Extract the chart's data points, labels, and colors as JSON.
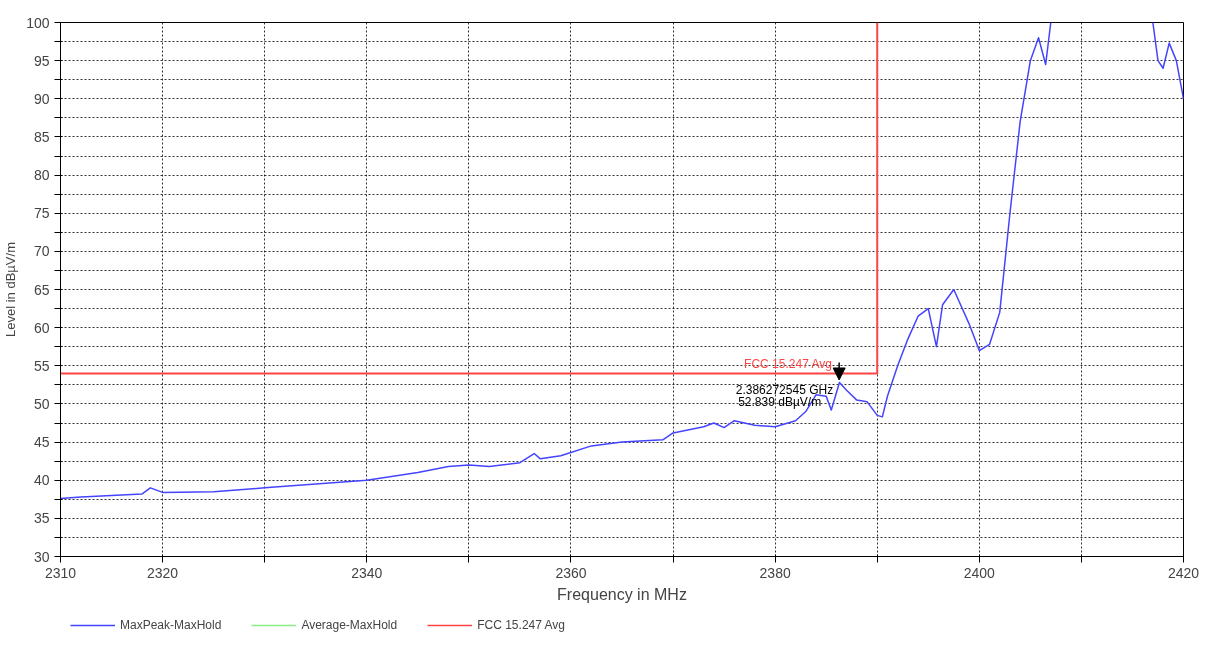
{
  "chart_data": {
    "type": "line",
    "xlabel": "Frequency in MHz",
    "ylabel": "Level in dBµV/m",
    "xlim": [
      2310,
      2420
    ],
    "ylim": [
      30,
      100
    ],
    "xticks": [
      2310,
      2320,
      {
        "value": 2330,
        "label": null
      },
      2340,
      {
        "value": 2350,
        "label": null
      },
      2360,
      {
        "value": 2370,
        "label": null
      },
      2380,
      {
        "value": 2390,
        "label": null
      },
      2400,
      {
        "value": 2410,
        "label": null
      },
      2420
    ],
    "yticks": [
      30,
      {
        "value": 32.5,
        "label": null
      },
      35,
      {
        "value": 37.5,
        "label": null
      },
      40,
      {
        "value": 42.5,
        "label": null
      },
      45,
      {
        "value": 47.5,
        "label": null
      },
      50,
      {
        "value": 52.5,
        "label": null
      },
      55,
      {
        "value": 57.5,
        "label": null
      },
      60,
      {
        "value": 62.5,
        "label": null
      },
      65,
      {
        "value": 67.5,
        "label": null
      },
      70,
      {
        "value": 72.5,
        "label": null
      },
      75,
      {
        "value": 77.5,
        "label": null
      },
      80,
      {
        "value": 82.5,
        "label": null
      },
      85,
      {
        "value": 87.5,
        "label": null
      },
      90,
      {
        "value": 92.5,
        "label": null
      },
      95,
      {
        "value": 97.5,
        "label": null
      },
      100
    ],
    "grid": true,
    "legend": "bottom left",
    "marker": "none",
    "line_style": "solid",
    "series": [
      {
        "name": "MaxPeak-MaxHold",
        "color": "#4444ff",
        "x": [
          2310,
          2312,
          2315,
          2318,
          2318.8,
          2320,
          2325,
          2330,
          2335,
          2340,
          2345,
          2348,
          2350,
          2352,
          2355,
          2356.4,
          2357,
          2359,
          2362,
          2365,
          2369,
          2370,
          2373,
          2374,
          2375,
          2376,
          2378,
          2380,
          2382,
          2383,
          2384,
          2385,
          2385.5,
          2386.3,
          2387,
          2388,
          2389,
          2390,
          2390.5,
          2391,
          2392,
          2393,
          2394,
          2395,
          2395.8,
          2396.4,
          2397.5,
          2398,
          2399,
          2400,
          2401,
          2402,
          2403,
          2404,
          2405,
          2405.8,
          2406.5,
          2407,
          2412,
          2417,
          2417.5,
          2418,
          2418.6,
          2419.3,
          2420
        ],
        "values": [
          37.6,
          37.8,
          38.0,
          38.2,
          39.0,
          38.4,
          38.5,
          39.0,
          39.5,
          40.0,
          41.0,
          41.8,
          42.0,
          41.8,
          42.3,
          43.5,
          42.8,
          43.2,
          44.5,
          45.0,
          45.3,
          46.2,
          47.0,
          47.5,
          46.9,
          47.8,
          47.2,
          47.0,
          47.8,
          49.0,
          51.2,
          51.0,
          49.2,
          52.8,
          51.8,
          50.5,
          50.3,
          48.5,
          48.3,
          51,
          55,
          58.5,
          61.5,
          62.5,
          57.5,
          63,
          65,
          63.5,
          60.5,
          57,
          57.8,
          62,
          75,
          87,
          95,
          98,
          94.5,
          100,
          null,
          100,
          95,
          94,
          97.3,
          95,
          90
        ]
      },
      {
        "name": "Average-MaxHold",
        "color": "#88ee88"
      },
      {
        "name": "FCC 15.247 Avg",
        "color": "#ff4444",
        "type": "step",
        "x": [
          2310,
          2390,
          2390
        ],
        "values": [
          54,
          54,
          100
        ]
      }
    ],
    "annotations": [
      {
        "text": "FCC 15.247 Avg",
        "x": 2387,
        "y": 54
      },
      {
        "text": "2.386272545 GHz\n52.839 dBµV/m",
        "x": 2386.27,
        "y": 52.839
      }
    ]
  }
}
